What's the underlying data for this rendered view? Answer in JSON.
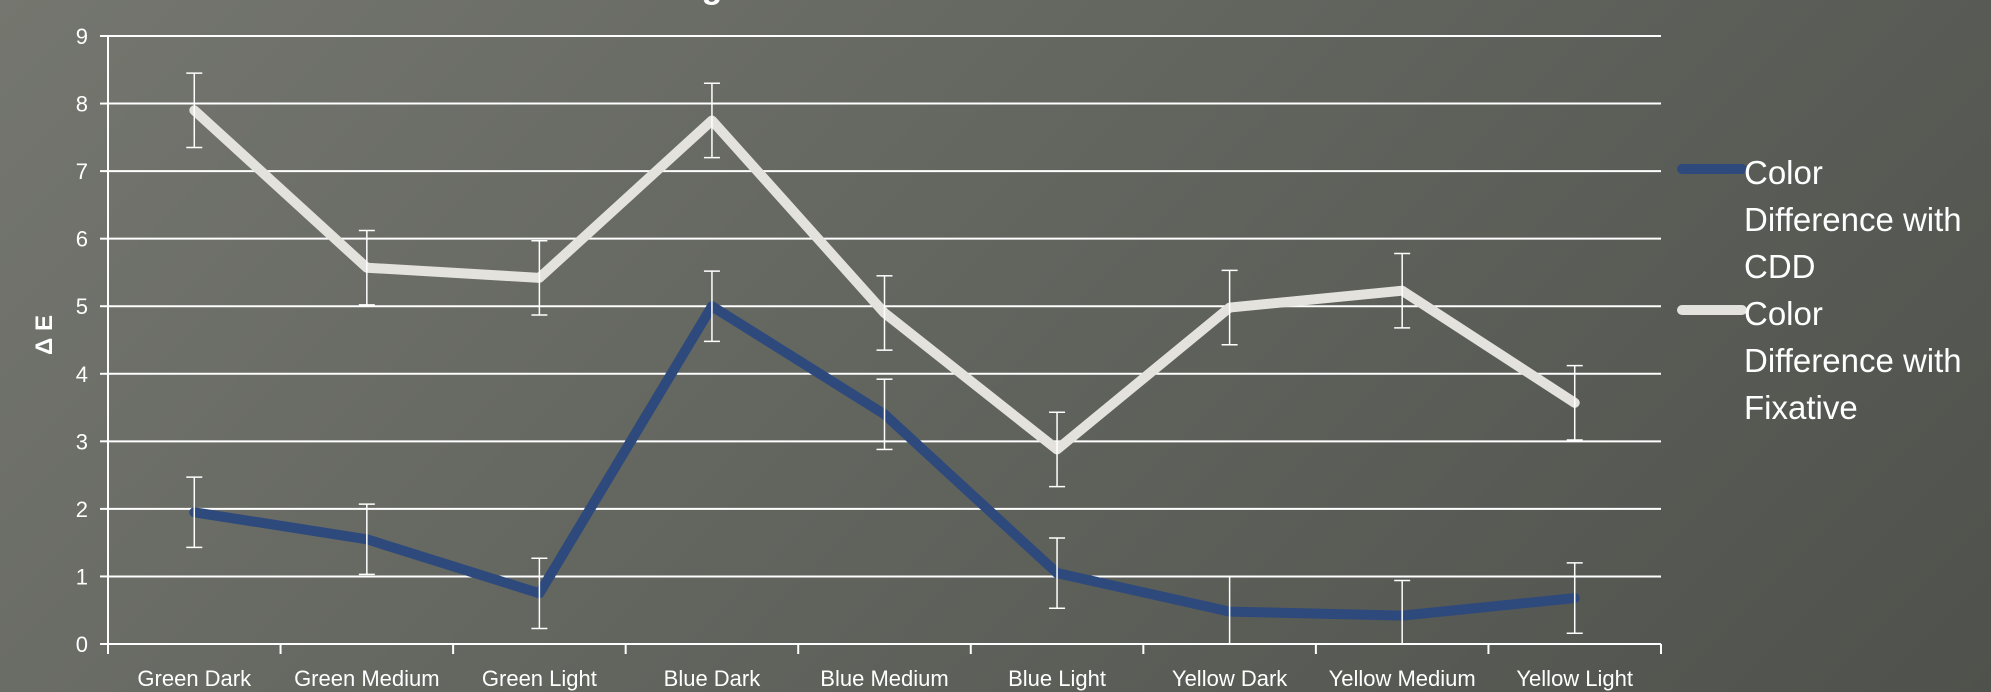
{
  "chart_data": {
    "type": "line",
    "title_fragment": "g",
    "xlabel": "",
    "ylabel": "Δ E",
    "ylim": [
      0,
      9
    ],
    "yticks": [
      "0",
      "1",
      "2",
      "3",
      "4",
      "5",
      "6",
      "7",
      "8",
      "9"
    ],
    "grid": true,
    "legend_position": "right",
    "categories": [
      "Green Dark",
      "Green Medium",
      "Green Light",
      "Blue Dark",
      "Blue Medium",
      "Blue Light",
      "Yellow Dark",
      "Yellow Medium",
      "Yellow Light"
    ],
    "series": [
      {
        "name": "Color Difference with CDD",
        "legend_lines": [
          "Color",
          "Difference with",
          "CDD"
        ],
        "color": "#2e4a7c",
        "values": [
          1.95,
          1.55,
          0.75,
          5.0,
          3.4,
          1.05,
          0.48,
          0.42,
          0.68
        ],
        "error": [
          0.52,
          0.52,
          0.52,
          0.52,
          0.52,
          0.52,
          0.52,
          0.52,
          0.52
        ]
      },
      {
        "name": "Color Difference with Fixative",
        "legend_lines": [
          "Color",
          "Difference with",
          "Fixative"
        ],
        "color": "#e4e2dc",
        "values": [
          7.9,
          5.57,
          5.42,
          7.75,
          4.9,
          2.88,
          4.98,
          5.23,
          3.57
        ],
        "error": [
          0.55,
          0.55,
          0.55,
          0.55,
          0.55,
          0.55,
          0.55,
          0.55,
          0.55
        ]
      }
    ]
  }
}
